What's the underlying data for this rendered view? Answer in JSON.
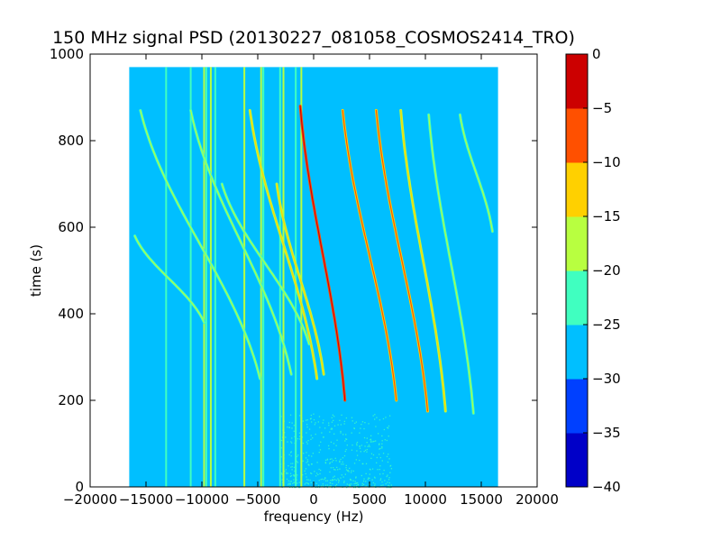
{
  "chart_data": {
    "type": "heatmap",
    "title": "150 MHz signal PSD (20130227_081058_COSMOS2414_TRO)",
    "xlabel": "frequency (Hz)",
    "ylabel": "time (s)",
    "xlim": [
      -20000,
      20000
    ],
    "ylim": [
      0,
      1000
    ],
    "xticks": [
      -20000,
      -15000,
      -10000,
      -5000,
      0,
      5000,
      10000,
      15000,
      20000
    ],
    "yticks": [
      0,
      200,
      400,
      600,
      800,
      1000
    ],
    "xticklabels": [
      "−20000",
      "−15000",
      "−10000",
      "−5000",
      "0",
      "5000",
      "10000",
      "15000",
      "20000"
    ],
    "yticklabels": [
      "0",
      "200",
      "400",
      "600",
      "800",
      "1000"
    ],
    "data_extent": {
      "x": [
        -16500,
        16500
      ],
      "y": [
        0,
        970
      ]
    },
    "background_level": -27.5,
    "colorbar": {
      "levels": [
        -40,
        -35,
        -30,
        -25,
        -20,
        -15,
        -10,
        -5,
        0
      ],
      "ticklabels": [
        "−40",
        "−35",
        "−30",
        "−25",
        "−20",
        "−15",
        "−10",
        "−5",
        "0"
      ],
      "colors": [
        "#0000c8",
        "#0040ff",
        "#00bfff",
        "#40ffc0",
        "#b8ff40",
        "#ffd000",
        "#ff5000",
        "#cc0000"
      ]
    },
    "vertical_lines": [
      {
        "x": -13200,
        "level": -22.5
      },
      {
        "x": -11000,
        "level": -22.5
      },
      {
        "x": -9800,
        "level": -17.5
      },
      {
        "x": -9600,
        "level": -22.5
      },
      {
        "x": -9200,
        "level": -17.5
      },
      {
        "x": -8800,
        "level": -22.5
      },
      {
        "x": -6200,
        "level": -17.5
      },
      {
        "x": -4700,
        "level": -17.5
      },
      {
        "x": -4500,
        "level": -22.5
      },
      {
        "x": -3000,
        "level": -22.5
      },
      {
        "x": -2700,
        "level": -17.5
      },
      {
        "x": -1600,
        "level": -22.5
      },
      {
        "x": -1100,
        "level": -17.5
      }
    ],
    "curves": [
      {
        "x_top": -16000,
        "x_bottom": -9800,
        "y_top": 580,
        "y_bottom": 380,
        "level": -22.5
      },
      {
        "x_top": -15500,
        "x_bottom": -4800,
        "y_top": 870,
        "y_bottom": 250,
        "level": -22.5
      },
      {
        "x_top": -11000,
        "x_bottom": -2000,
        "y_top": 870,
        "y_bottom": 260,
        "level": -22.5
      },
      {
        "x_top": -5700,
        "x_bottom": 300,
        "y_top": 870,
        "y_bottom": 250,
        "level": -17.5
      },
      {
        "x_top": -3300,
        "x_bottom": 900,
        "y_top": 700,
        "y_bottom": 260,
        "level": -17.5
      },
      {
        "x_top": -1200,
        "x_bottom": 2800,
        "y_top": 880,
        "y_bottom": 200,
        "level": -7.5
      },
      {
        "x_top": 2600,
        "x_bottom": 7400,
        "y_top": 870,
        "y_bottom": 200,
        "level": -12.5
      },
      {
        "x_top": 5600,
        "x_bottom": 10200,
        "y_top": 870,
        "y_bottom": 175,
        "level": -12.5
      },
      {
        "x_top": 7800,
        "x_bottom": 11800,
        "y_top": 870,
        "y_bottom": 175,
        "level": -17.5
      },
      {
        "x_top": 10300,
        "x_bottom": 14300,
        "y_top": 860,
        "y_bottom": 170,
        "level": -22.5
      },
      {
        "x_top": 13100,
        "x_bottom": 16000,
        "y_top": 860,
        "y_bottom": 590,
        "level": -22.5
      },
      {
        "x_top": -8200,
        "x_bottom": -400,
        "y_top": 700,
        "y_bottom": 330,
        "level": -22.5
      }
    ],
    "noise_region": {
      "x": [
        -3000,
        7000
      ],
      "y": [
        0,
        170
      ],
      "level": -22.5
    }
  }
}
